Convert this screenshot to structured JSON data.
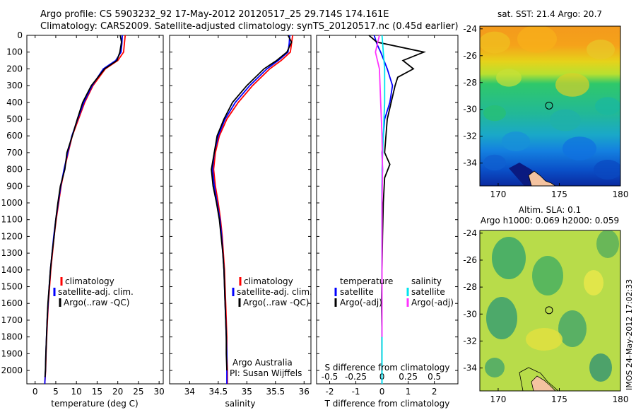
{
  "title_line1": "Argo profile: CS 5903232_92 17-May-2012 20120517_25 29.714S 174.161E",
  "title_line2": "Climatology: CARS2009. Satellite-adjusted climatology: synTS_20120517.nc (0.45d earlier)",
  "side_stamp": "IMOS 24-May-2012 17:02:33",
  "colors": {
    "climatology": "#ff0000",
    "satellite": "#0000ff",
    "argo": "#000000",
    "sal_sat": "#00e5ee",
    "sal_argo": "#ff33ff"
  },
  "chart_data": [
    {
      "type": "line",
      "name": "temperature-profile",
      "xlabel": "temperature (deg C)",
      "ylabel": "",
      "xlim": [
        -2,
        31
      ],
      "ylim": [
        2080,
        0
      ],
      "xticks": [
        0,
        5,
        10,
        15,
        20,
        25,
        30
      ],
      "yticks": [
        0,
        100,
        200,
        300,
        400,
        500,
        600,
        700,
        800,
        900,
        1000,
        1100,
        1200,
        1300,
        1400,
        1500,
        1600,
        1700,
        1800,
        1900,
        2000
      ],
      "legend": [
        "climatology",
        "satellite-adj. clim.",
        "Argo(..raw -QC)"
      ],
      "legend_position": "center-right",
      "series": [
        {
          "name": "climatology",
          "color": "#ff0000",
          "x": [
            21.8,
            21.6,
            21.4,
            20,
            17,
            14,
            12,
            10.5,
            9,
            8,
            7.1,
            6.3,
            5.7,
            5.1,
            4.6,
            4.2,
            3.8,
            3.5,
            3.2,
            3,
            2.8,
            2.65,
            2.55,
            2.45,
            2.4,
            2.35,
            2.35
          ],
          "y": [
            0,
            50,
            100,
            150,
            200,
            300,
            400,
            500,
            600,
            700,
            800,
            900,
            1000,
            1100,
            1200,
            1300,
            1400,
            1500,
            1600,
            1700,
            1800,
            1900,
            2000,
            2040,
            2060,
            2070,
            2080
          ]
        },
        {
          "name": "satellite-adj. clim.",
          "color": "#0000ff",
          "x": [
            21.1,
            21,
            20.8,
            19.5,
            16.5,
            13.8,
            11.8,
            10.3,
            8.9,
            7.9,
            7,
            6.2,
            5.6,
            5,
            4.5,
            4.1,
            3.7,
            3.4,
            3.15,
            2.9,
            2.75,
            2.6,
            2.5,
            2.4,
            2.35
          ],
          "y": [
            0,
            50,
            100,
            150,
            200,
            300,
            400,
            500,
            600,
            700,
            800,
            900,
            1000,
            1100,
            1200,
            1300,
            1400,
            1500,
            1600,
            1700,
            1800,
            1900,
            2000,
            2050,
            2080
          ]
        },
        {
          "name": "Argo(..raw -QC)",
          "color": "#000000",
          "x": [
            20.6,
            20.9,
            20.5,
            19.8,
            16.8,
            13.6,
            11.5,
            10.2,
            9,
            7.7,
            7.2,
            6.1,
            5.5,
            5,
            4.6,
            4.1,
            3.7,
            3.4,
            3.1,
            2.9,
            2.75,
            2.6,
            2.5,
            2.4
          ],
          "y": [
            0,
            40,
            100,
            150,
            200,
            300,
            400,
            500,
            600,
            700,
            800,
            900,
            1000,
            1100,
            1200,
            1300,
            1400,
            1500,
            1600,
            1700,
            1800,
            1900,
            2000,
            2040
          ]
        }
      ]
    },
    {
      "type": "line",
      "name": "salinity-profile",
      "xlabel": "salinity",
      "xlim": [
        33.65,
        36.12
      ],
      "ylim": [
        2080,
        0
      ],
      "xticks": [
        34,
        34.5,
        35,
        35.5,
        36
      ],
      "legend": [
        "climatology",
        "satellite-adj. clim.",
        "Argo(..raw -QC)"
      ],
      "legend_position": "center-right",
      "annotation": [
        "Argo Australia",
        "PI: Susan Wijffels"
      ],
      "series": [
        {
          "name": "climatology",
          "color": "#ff0000",
          "x": [
            35.8,
            35.78,
            35.76,
            35.6,
            35.4,
            35.1,
            34.85,
            34.65,
            34.52,
            34.45,
            34.42,
            34.45,
            34.5,
            34.54,
            34.57,
            34.59,
            34.61,
            34.62,
            34.63,
            34.64,
            34.65,
            34.65,
            34.66,
            34.66,
            34.66
          ],
          "y": [
            0,
            50,
            100,
            150,
            200,
            300,
            400,
            500,
            600,
            700,
            800,
            900,
            1000,
            1100,
            1200,
            1300,
            1400,
            1500,
            1600,
            1700,
            1800,
            1900,
            2000,
            2050,
            2080
          ]
        },
        {
          "name": "satellite-adj. clim.",
          "color": "#0000ff",
          "x": [
            35.75,
            35.74,
            35.72,
            35.55,
            35.35,
            35.05,
            34.8,
            34.62,
            34.5,
            34.43,
            34.4,
            34.43,
            34.48,
            34.53,
            34.56,
            34.58,
            34.6,
            34.61,
            34.62,
            34.63,
            34.64,
            34.65,
            34.65,
            34.65
          ],
          "y": [
            0,
            50,
            100,
            150,
            200,
            300,
            400,
            500,
            600,
            700,
            800,
            900,
            1000,
            1100,
            1200,
            1300,
            1400,
            1500,
            1600,
            1700,
            1800,
            1900,
            2000,
            2080
          ]
        },
        {
          "name": "Argo(..raw -QC)",
          "color": "#000000",
          "x": [
            35.72,
            35.78,
            35.7,
            35.52,
            35.3,
            35.0,
            34.75,
            34.6,
            34.48,
            34.43,
            34.38,
            34.41,
            34.47,
            34.52,
            34.55,
            34.58,
            34.6,
            34.61,
            34.62,
            34.63,
            34.64,
            34.64,
            34.65
          ],
          "y": [
            0,
            40,
            100,
            150,
            200,
            300,
            400,
            500,
            600,
            700,
            800,
            900,
            1000,
            1100,
            1200,
            1300,
            1400,
            1500,
            1600,
            1700,
            1800,
            1900,
            2000
          ]
        }
      ]
    },
    {
      "type": "line",
      "name": "difference-profile",
      "xlabel": "T difference from climatology",
      "xlabel_top": "S difference from climatology",
      "xlim": [
        -2.5,
        2.9
      ],
      "ylim": [
        2080,
        0
      ],
      "xticks": [
        -2,
        -1,
        0,
        1,
        2
      ],
      "xticks_top": [
        "-0.5",
        "-0.25",
        "0",
        "0.25",
        "0.5"
      ],
      "legend_temperature_title": "temperature",
      "legend_salinity_title": "salinity",
      "legend_temperature": [
        "satellite",
        "Argo(-adj)"
      ],
      "legend_salinity": [
        "satellite",
        "Argo(-adj)"
      ],
      "series": [
        {
          "name": "temperature satellite",
          "color": "#0000ff",
          "x": [
            -0.3,
            -0.2,
            -0.05,
            0.2,
            0.4,
            0.3,
            0.1,
            0.05,
            0,
            0.02,
            0,
            0,
            0,
            0,
            0,
            0,
            0
          ],
          "y": [
            0,
            50,
            100,
            200,
            300,
            400,
            500,
            600,
            700,
            800,
            900,
            1000,
            1200,
            1400,
            1600,
            1800,
            2080
          ]
        },
        {
          "name": "temperature Argo(-adj)",
          "color": "#000000",
          "x": [
            -0.5,
            -0.2,
            1.6,
            0.8,
            1.2,
            0.6,
            0.5,
            0.2,
            0.1,
            0.3,
            0.1,
            0.05,
            0.02,
            0,
            -0.02,
            0,
            0
          ],
          "y": [
            0,
            40,
            100,
            150,
            200,
            250,
            300,
            500,
            700,
            770,
            850,
            1000,
            1200,
            1400,
            1600,
            1800,
            2040
          ]
        },
        {
          "name": "salinity satellite",
          "color": "#00e5ee",
          "x": [
            0,
            0.05,
            0.1,
            0.1,
            0.05,
            0,
            0,
            0,
            0,
            0
          ],
          "y": [
            0,
            100,
            200,
            400,
            600,
            800,
            1000,
            1400,
            1800,
            2080
          ]
        },
        {
          "name": "salinity Argo(-adj)",
          "color": "#ff33ff",
          "x": [
            -0.1,
            -0.25,
            -0.1,
            -0.05,
            0,
            0.02,
            0,
            0,
            0
          ],
          "y": [
            0,
            100,
            200,
            400,
            600,
            800,
            1000,
            1400,
            1800
          ]
        }
      ]
    },
    {
      "type": "heatmap",
      "name": "sst-map",
      "title": "sat. SST: 21.4 Argo: 20.7",
      "xlim": [
        168.5,
        180
      ],
      "ylim": [
        -35.7,
        -23.8
      ],
      "xticks": [
        170,
        175,
        180
      ],
      "yticks": [
        -24,
        -26,
        -28,
        -30,
        -32,
        -34
      ],
      "marker": {
        "lon": 174.161,
        "lat": -29.714
      }
    },
    {
      "type": "heatmap",
      "name": "sla-map",
      "title_line1": "Altim. SLA: 0.1",
      "title_line2": "Argo h1000: 0.069 h2000: 0.059",
      "xlim": [
        168.5,
        180
      ],
      "ylim": [
        -35.7,
        -23.8
      ],
      "xticks": [
        170,
        175,
        180
      ],
      "yticks": [
        -24,
        -26,
        -28,
        -30,
        -32,
        -34
      ],
      "marker": {
        "lon": 174.161,
        "lat": -29.714
      }
    }
  ]
}
